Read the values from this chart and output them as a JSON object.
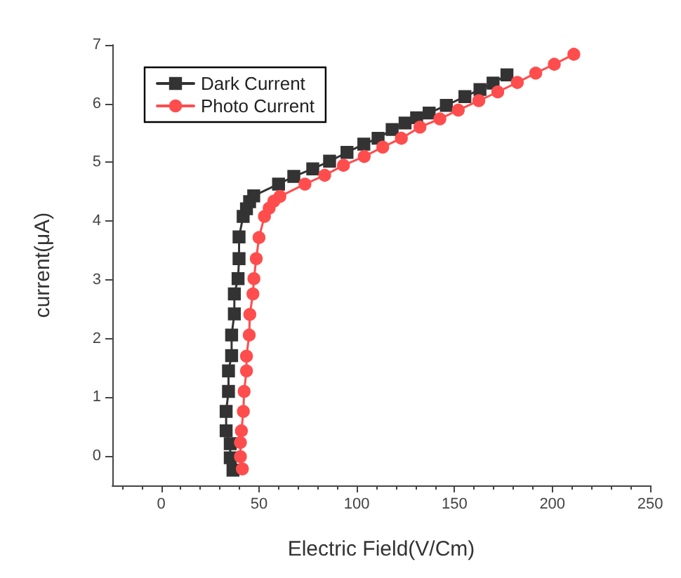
{
  "chart_data": {
    "type": "line",
    "xlabel": "Electric Field(V/Cm)",
    "ylabel": "current(μA)",
    "xlim": [
      -25,
      250
    ],
    "xticks": [
      0,
      50,
      100,
      150,
      200,
      250
    ],
    "ylim": [
      -0.5,
      7
    ],
    "yticks": [
      0,
      1,
      2,
      3,
      4,
      5,
      6,
      7
    ],
    "grid": false,
    "legend": "top left",
    "line_style": "solid",
    "series": [
      {
        "name": "Dark Current",
        "color": "#333333",
        "marker": "square",
        "x": [
          36.7,
          35.3,
          35.3,
          33.2,
          33.2,
          34.4,
          34.4,
          36.0,
          36.0,
          37.4,
          37.4,
          39.3,
          39.8,
          39.8,
          41.9,
          43.6,
          45.2,
          47.3,
          60,
          67.8,
          77.5,
          86.1,
          95,
          103.6,
          110.9,
          118.1,
          124.7,
          130.6,
          137,
          145.8,
          155.3,
          163,
          169.7,
          176.8
        ],
        "values": [
          -0.24,
          -0.03,
          0.21,
          0.43,
          0.76,
          1.1,
          1.45,
          1.71,
          2.06,
          2.42,
          2.76,
          3.02,
          3.36,
          3.73,
          4.08,
          4.21,
          4.33,
          4.43,
          4.63,
          4.76,
          4.89,
          5.02,
          5.17,
          5.31,
          5.41,
          5.56,
          5.67,
          5.76,
          5.84,
          5.97,
          6.12,
          6.24,
          6.35,
          6.49
        ]
      },
      {
        "name": "Photo Current",
        "color": "#ff4d4d",
        "marker": "circle",
        "x": [
          41.5,
          40.5,
          40.5,
          41.0,
          42.0,
          42.4,
          43.6,
          43.6,
          45.0,
          45.3,
          46.9,
          47.4,
          48.6,
          50.0,
          52.8,
          55.2,
          57.6,
          60.7,
          73.5,
          83.6,
          93.2,
          103.8,
          113.3,
          122.8,
          132.3,
          142.5,
          151.9,
          162.4,
          172.1,
          182.1,
          191.5,
          201,
          211
        ],
        "values": [
          -0.22,
          -0.01,
          0.23,
          0.43,
          0.76,
          1.1,
          1.45,
          1.7,
          2.06,
          2.41,
          2.76,
          3.02,
          3.36,
          3.72,
          4.08,
          4.22,
          4.34,
          4.42,
          4.63,
          4.78,
          4.95,
          5.1,
          5.26,
          5.41,
          5.6,
          5.74,
          5.89,
          6.05,
          6.2,
          6.36,
          6.52,
          6.67,
          6.84
        ]
      }
    ]
  }
}
